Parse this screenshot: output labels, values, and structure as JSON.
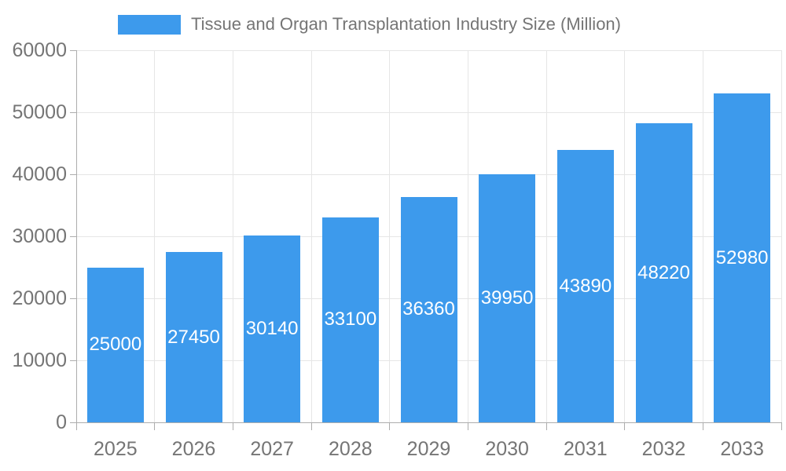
{
  "chart_data": {
    "type": "bar",
    "title": "Tissue and Organ Transplantation Industry Size (Million)",
    "categories": [
      "2025",
      "2026",
      "2027",
      "2028",
      "2029",
      "2030",
      "2031",
      "2032",
      "2033"
    ],
    "values": [
      25000,
      27450,
      30140,
      33100,
      36360,
      39950,
      43890,
      48220,
      52980
    ],
    "data_labels": [
      "25000",
      "27450",
      "30140",
      "33100",
      "36360",
      "39950",
      "43890",
      "48220",
      "52980"
    ],
    "ylim": [
      0,
      60000
    ],
    "y_ticks": [
      0,
      10000,
      20000,
      30000,
      40000,
      50000,
      60000
    ],
    "y_tick_labels": [
      "0",
      "10000",
      "20000",
      "30000",
      "40000",
      "50000",
      "60000"
    ],
    "grid": true,
    "legend_position": "top",
    "colors": {
      "bar": "#3D9AEC",
      "bar_label_text": "#FFFFFF",
      "grid": "#E6E6E6",
      "axis_line": "#ADADAD",
      "axis_text": "#757575",
      "legend_text": "#757575"
    }
  }
}
